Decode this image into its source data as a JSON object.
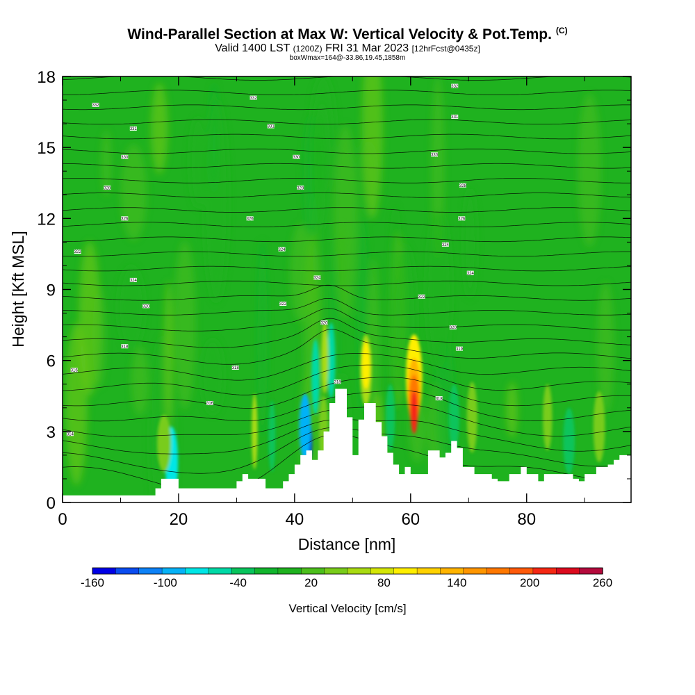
{
  "chart_data": {
    "type": "heatmap",
    "title": "Wind-Parallel Section at Max W: Vertical Velocity & Pot.Temp.",
    "title_mark": "(C)",
    "subtitle": {
      "valid": "Valid 1400 LST",
      "utc": "(1200Z)",
      "date": "FRI 31 Mar 2023",
      "fcst": "[12hrFcst@0435z]"
    },
    "annotation": "boxWmax=164@-33.86,19.45,1858m",
    "xlabel": "Distance [nm]",
    "ylabel": "Height [Kft MSL]",
    "xlim": [
      0,
      98
    ],
    "ylim": [
      0,
      18
    ],
    "x_ticks": [
      {
        "value": 0,
        "label": "0"
      },
      {
        "value": 20,
        "label": "20"
      },
      {
        "value": 40,
        "label": "40"
      },
      {
        "value": 60,
        "label": "60"
      },
      {
        "value": 80,
        "label": "80"
      }
    ],
    "y_ticks": [
      {
        "value": 0,
        "label": "0"
      },
      {
        "value": 3,
        "label": "3"
      },
      {
        "value": 6,
        "label": "6"
      },
      {
        "value": 9,
        "label": "9"
      },
      {
        "value": 12,
        "label": "12"
      },
      {
        "value": 15,
        "label": "15"
      },
      {
        "value": 18,
        "label": "18"
      }
    ],
    "colorbar": {
      "label": "Vertical Velocity [cm/s]",
      "min": -160,
      "max": 260,
      "step": 20,
      "tick_labels": [
        {
          "value": -160,
          "label": "-160"
        },
        {
          "value": -100,
          "label": "-100"
        },
        {
          "value": -40,
          "label": "-40"
        },
        {
          "value": 20,
          "label": "20"
        },
        {
          "value": 80,
          "label": "80"
        },
        {
          "value": 140,
          "label": "140"
        },
        {
          "value": 200,
          "label": "200"
        },
        {
          "value": 260,
          "label": "260"
        }
      ],
      "colors": [
        "#0000e6",
        "#0a4cf0",
        "#0d82f7",
        "#06b2f7",
        "#00e6e6",
        "#00d9a6",
        "#08c45c",
        "#12b52d",
        "#1fb21f",
        "#4cbf1c",
        "#79cc1a",
        "#a9db12",
        "#d4e606",
        "#ffef00",
        "#ffd200",
        "#ffb400",
        "#ff9600",
        "#ff7800",
        "#ff5a0a",
        "#f52814",
        "#dc0a1e",
        "#b40a3c"
      ]
    },
    "terrain": {
      "note": "Surface height profile (x in nm, height in kft); the area below is blank.",
      "points": [
        [
          0,
          0.3
        ],
        [
          16,
          0.3
        ],
        [
          16,
          0.6
        ],
        [
          17,
          0.6
        ],
        [
          17,
          1.0
        ],
        [
          20,
          1.0
        ],
        [
          20,
          0.6
        ],
        [
          30,
          0.6
        ],
        [
          30,
          0.9
        ],
        [
          31,
          0.9
        ],
        [
          31,
          1.2
        ],
        [
          32,
          1.2
        ],
        [
          32,
          1.0
        ],
        [
          35,
          1.0
        ],
        [
          35,
          0.6
        ],
        [
          38,
          0.6
        ],
        [
          38,
          0.9
        ],
        [
          39,
          0.9
        ],
        [
          39,
          1.2
        ],
        [
          40,
          1.2
        ],
        [
          40,
          1.6
        ],
        [
          41,
          1.6
        ],
        [
          41,
          2.0
        ],
        [
          42,
          2.0
        ],
        [
          42,
          2.2
        ],
        [
          43,
          2.2
        ],
        [
          43,
          1.8
        ],
        [
          44,
          1.8
        ],
        [
          44,
          2.2
        ],
        [
          45,
          2.2
        ],
        [
          45,
          3.0
        ],
        [
          46,
          3.0
        ],
        [
          46,
          4.2
        ],
        [
          47,
          4.2
        ],
        [
          47,
          4.8
        ],
        [
          49,
          4.8
        ],
        [
          49,
          3.6
        ],
        [
          50,
          3.6
        ],
        [
          50,
          2.0
        ],
        [
          51,
          2.0
        ],
        [
          51,
          3.5
        ],
        [
          52,
          3.5
        ],
        [
          52,
          4.2
        ],
        [
          54,
          4.2
        ],
        [
          54,
          3.4
        ],
        [
          55,
          3.4
        ],
        [
          55,
          2.8
        ],
        [
          56,
          2.8
        ],
        [
          56,
          2.1
        ],
        [
          57,
          2.1
        ],
        [
          57,
          1.6
        ],
        [
          58,
          1.6
        ],
        [
          58,
          1.2
        ],
        [
          59,
          1.2
        ],
        [
          59,
          1.5
        ],
        [
          60,
          1.5
        ],
        [
          60,
          1.2
        ],
        [
          63,
          1.2
        ],
        [
          63,
          2.2
        ],
        [
          65,
          2.2
        ],
        [
          65,
          1.9
        ],
        [
          66,
          1.9
        ],
        [
          66,
          2.1
        ],
        [
          67,
          2.1
        ],
        [
          67,
          2.6
        ],
        [
          68,
          2.6
        ],
        [
          68,
          2.3
        ],
        [
          69,
          2.3
        ],
        [
          69,
          1.5
        ],
        [
          71,
          1.5
        ],
        [
          71,
          1.2
        ],
        [
          74,
          1.2
        ],
        [
          74,
          1.0
        ],
        [
          75,
          1.0
        ],
        [
          75,
          0.9
        ],
        [
          77,
          0.9
        ],
        [
          77,
          1.2
        ],
        [
          79,
          1.2
        ],
        [
          79,
          1.5
        ],
        [
          80,
          1.5
        ],
        [
          80,
          1.2
        ],
        [
          82,
          1.2
        ],
        [
          82,
          0.9
        ],
        [
          83,
          0.9
        ],
        [
          83,
          1.2
        ],
        [
          88,
          1.2
        ],
        [
          88,
          1.0
        ],
        [
          89,
          1.0
        ],
        [
          89,
          0.9
        ],
        [
          90,
          0.9
        ],
        [
          90,
          1.2
        ],
        [
          92,
          1.2
        ],
        [
          92,
          1.5
        ],
        [
          94,
          1.5
        ],
        [
          94,
          1.6
        ],
        [
          95,
          1.6
        ],
        [
          95,
          1.8
        ],
        [
          96,
          1.8
        ],
        [
          96,
          2.0
        ],
        [
          98,
          2.0
        ]
      ]
    },
    "velocity_cells": [
      {
        "x": 18.8,
        "y": 1.7,
        "rx": 1.1,
        "ry": 1.5,
        "w": -80
      },
      {
        "x": 42.3,
        "y": 2.6,
        "rx": 0.7,
        "ry": 0.9,
        "w": -160
      },
      {
        "x": 41.8,
        "y": 3.2,
        "rx": 1.0,
        "ry": 1.4,
        "w": -100
      },
      {
        "x": 43.6,
        "y": 5.3,
        "rx": 0.7,
        "ry": 1.6,
        "w": -60
      },
      {
        "x": 46.3,
        "y": 6.0,
        "rx": 0.7,
        "ry": 1.6,
        "w": -60
      },
      {
        "x": 36.1,
        "y": 2.8,
        "rx": 0.6,
        "ry": 1.5,
        "w": -40
      },
      {
        "x": 56.5,
        "y": 3.6,
        "rx": 0.8,
        "ry": 1.4,
        "w": -40
      },
      {
        "x": 67.5,
        "y": 3.6,
        "rx": 0.9,
        "ry": 1.4,
        "w": -40
      },
      {
        "x": 87.3,
        "y": 2.6,
        "rx": 1.0,
        "ry": 1.4,
        "w": -40
      },
      {
        "x": 52.3,
        "y": 5.6,
        "rx": 1.0,
        "ry": 1.5,
        "w": 60
      },
      {
        "x": 52.3,
        "y": 5.8,
        "rx": 0.7,
        "ry": 1.0,
        "w": 100
      },
      {
        "x": 60.6,
        "y": 5.3,
        "rx": 1.4,
        "ry": 1.8,
        "w": 100
      },
      {
        "x": 60.6,
        "y": 4.7,
        "rx": 1.1,
        "ry": 1.4,
        "w": 140
      },
      {
        "x": 60.6,
        "y": 4.3,
        "rx": 0.9,
        "ry": 1.1,
        "w": 180
      },
      {
        "x": 60.6,
        "y": 3.8,
        "rx": 0.6,
        "ry": 0.9,
        "w": 220
      },
      {
        "x": 45.2,
        "y": 6.1,
        "rx": 0.6,
        "ry": 1.5,
        "w": 60
      },
      {
        "x": 33.1,
        "y": 3.0,
        "rx": 0.5,
        "ry": 1.6,
        "w": 60
      },
      {
        "x": 70.6,
        "y": 3.6,
        "rx": 0.9,
        "ry": 1.5,
        "w": 40
      },
      {
        "x": 83.6,
        "y": 3.6,
        "rx": 0.8,
        "ry": 1.4,
        "w": 40
      },
      {
        "x": 17.5,
        "y": 2.5,
        "rx": 1.2,
        "ry": 1.2,
        "w": 40
      },
      {
        "x": 45.0,
        "y": 3.0,
        "rx": 0.8,
        "ry": 1.5,
        "w": 40
      },
      {
        "x": 92.5,
        "y": 3.2,
        "rx": 1.0,
        "ry": 1.5,
        "w": 40
      }
    ],
    "theta_labels": [
      {
        "x": 1.3,
        "y": 2.9,
        "label": "314"
      },
      {
        "x": 2.0,
        "y": 5.6,
        "label": "316"
      },
      {
        "x": 2.6,
        "y": 10.6,
        "label": "322"
      },
      {
        "x": 5.7,
        "y": 16.8,
        "label": "332"
      },
      {
        "x": 7.7,
        "y": 13.3,
        "label": "328"
      },
      {
        "x": 10.7,
        "y": 6.6,
        "label": "318"
      },
      {
        "x": 10.7,
        "y": 12.0,
        "label": "326"
      },
      {
        "x": 10.7,
        "y": 14.6,
        "label": "330"
      },
      {
        "x": 12.2,
        "y": 15.8,
        "label": "331"
      },
      {
        "x": 12.2,
        "y": 9.4,
        "label": "324"
      },
      {
        "x": 14.4,
        "y": 8.3,
        "label": "320"
      },
      {
        "x": 25.4,
        "y": 4.2,
        "label": "316"
      },
      {
        "x": 29.8,
        "y": 5.7,
        "label": "318"
      },
      {
        "x": 32.3,
        "y": 12.0,
        "label": "326"
      },
      {
        "x": 32.9,
        "y": 17.1,
        "label": "332"
      },
      {
        "x": 35.9,
        "y": 15.9,
        "label": "331"
      },
      {
        "x": 37.8,
        "y": 10.7,
        "label": "324"
      },
      {
        "x": 38.0,
        "y": 8.4,
        "label": "322"
      },
      {
        "x": 40.3,
        "y": 14.6,
        "label": "330"
      },
      {
        "x": 41.0,
        "y": 13.3,
        "label": "328"
      },
      {
        "x": 43.9,
        "y": 9.5,
        "label": "324"
      },
      {
        "x": 45.1,
        "y": 7.6,
        "label": "320"
      },
      {
        "x": 47.4,
        "y": 5.1,
        "label": "318"
      },
      {
        "x": 61.9,
        "y": 8.7,
        "label": "322"
      },
      {
        "x": 64.1,
        "y": 14.7,
        "label": "330"
      },
      {
        "x": 66.0,
        "y": 10.9,
        "label": "324"
      },
      {
        "x": 64.9,
        "y": 4.4,
        "label": "318"
      },
      {
        "x": 67.3,
        "y": 7.4,
        "label": "320"
      },
      {
        "x": 67.6,
        "y": 17.6,
        "label": "332"
      },
      {
        "x": 67.6,
        "y": 16.3,
        "label": "331"
      },
      {
        "x": 68.4,
        "y": 6.5,
        "label": "319"
      },
      {
        "x": 69.0,
        "y": 13.4,
        "label": "328"
      },
      {
        "x": 68.8,
        "y": 12.0,
        "label": "326"
      },
      {
        "x": 70.3,
        "y": 9.7,
        "label": "324"
      }
    ]
  }
}
